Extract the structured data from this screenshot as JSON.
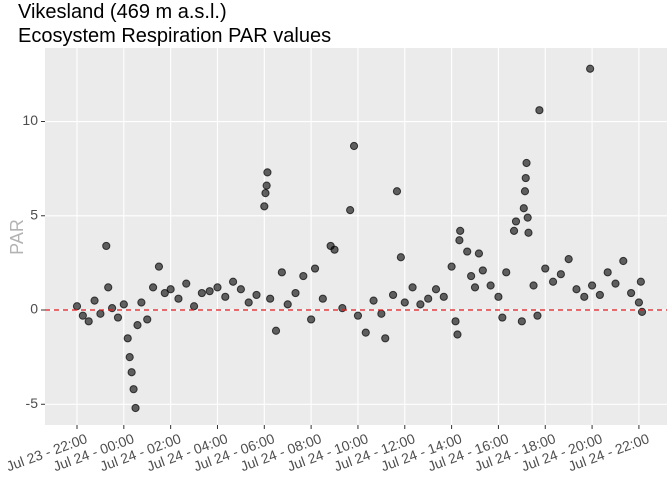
{
  "chart_data": {
    "type": "scatter",
    "title": "Vikesland (469 m a.s.l.)",
    "subtitle": "Ecosystem Respiration PAR values",
    "y_label": "PAR",
    "grid": true,
    "reference_line": {
      "value": 0,
      "color": "#e41a1c"
    },
    "xlim": [
      "Jul 23 - 20:38",
      "Jul 24 - 23:12"
    ],
    "xticks": [
      "Jul 23 - 22:00",
      "Jul 24 - 00:00",
      "Jul 24 - 02:00",
      "Jul 24 - 04:00",
      "Jul 24 - 06:00",
      "Jul 24 - 08:00",
      "Jul 24 - 10:00",
      "Jul 24 - 12:00",
      "Jul 24 - 14:00",
      "Jul 24 - 16:00",
      "Jul 24 - 18:00",
      "Jul 24 - 20:00",
      "Jul 24 - 22:00"
    ],
    "ylim": [
      -6.1,
      13.9
    ],
    "yticks": [
      -5,
      0,
      5,
      10
    ],
    "series": [
      {
        "color": "#000000",
        "x": [
          "Jul 23 - 22:00",
          "Jul 23 - 22:15",
          "Jul 23 - 22:30",
          "Jul 23 - 22:45",
          "Jul 23 - 23:00",
          "Jul 23 - 23:15",
          "Jul 23 - 23:20",
          "Jul 23 - 23:30",
          "Jul 23 - 23:45",
          "Jul 24 - 00:00",
          "Jul 24 - 00:10",
          "Jul 24 - 00:15",
          "Jul 24 - 00:20",
          "Jul 24 - 00:25",
          "Jul 24 - 00:30",
          "Jul 24 - 00:35",
          "Jul 24 - 00:45",
          "Jul 24 - 01:00",
          "Jul 24 - 01:15",
          "Jul 24 - 01:30",
          "Jul 24 - 01:45",
          "Jul 24 - 02:00",
          "Jul 24 - 02:20",
          "Jul 24 - 02:40",
          "Jul 24 - 03:00",
          "Jul 24 - 03:20",
          "Jul 24 - 03:40",
          "Jul 24 - 04:00",
          "Jul 24 - 04:20",
          "Jul 24 - 04:40",
          "Jul 24 - 05:00",
          "Jul 24 - 05:20",
          "Jul 24 - 05:40",
          "Jul 24 - 06:00",
          "Jul 24 - 06:03",
          "Jul 24 - 06:06",
          "Jul 24 - 06:08",
          "Jul 24 - 06:15",
          "Jul 24 - 06:30",
          "Jul 24 - 06:45",
          "Jul 24 - 07:00",
          "Jul 24 - 07:20",
          "Jul 24 - 07:40",
          "Jul 24 - 08:00",
          "Jul 24 - 08:10",
          "Jul 24 - 08:30",
          "Jul 24 - 08:50",
          "Jul 24 - 09:00",
          "Jul 24 - 09:20",
          "Jul 24 - 09:40",
          "Jul 24 - 09:50",
          "Jul 24 - 10:00",
          "Jul 24 - 10:20",
          "Jul 24 - 10:40",
          "Jul 24 - 11:00",
          "Jul 24 - 11:10",
          "Jul 24 - 11:30",
          "Jul 24 - 11:40",
          "Jul 24 - 11:50",
          "Jul 24 - 12:00",
          "Jul 24 - 12:20",
          "Jul 24 - 12:40",
          "Jul 24 - 13:00",
          "Jul 24 - 13:20",
          "Jul 24 - 13:40",
          "Jul 24 - 14:00",
          "Jul 24 - 14:10",
          "Jul 24 - 14:15",
          "Jul 24 - 14:20",
          "Jul 24 - 14:22",
          "Jul 24 - 14:40",
          "Jul 24 - 14:50",
          "Jul 24 - 15:00",
          "Jul 24 - 15:10",
          "Jul 24 - 15:20",
          "Jul 24 - 15:40",
          "Jul 24 - 16:00",
          "Jul 24 - 16:10",
          "Jul 24 - 16:20",
          "Jul 24 - 16:40",
          "Jul 24 - 16:45",
          "Jul 24 - 17:00",
          "Jul 24 - 17:05",
          "Jul 24 - 17:08",
          "Jul 24 - 17:10",
          "Jul 24 - 17:12",
          "Jul 24 - 17:15",
          "Jul 24 - 17:17",
          "Jul 24 - 17:30",
          "Jul 24 - 17:40",
          "Jul 24 - 17:45",
          "Jul 24 - 18:00",
          "Jul 24 - 18:20",
          "Jul 24 - 18:40",
          "Jul 24 - 19:00",
          "Jul 24 - 19:20",
          "Jul 24 - 19:40",
          "Jul 24 - 19:55",
          "Jul 24 - 20:00",
          "Jul 24 - 20:20",
          "Jul 24 - 20:40",
          "Jul 24 - 21:00",
          "Jul 24 - 21:20",
          "Jul 24 - 21:40",
          "Jul 24 - 22:00",
          "Jul 24 - 22:05",
          "Jul 24 - 22:08"
        ],
        "values": [
          0.2,
          -0.3,
          -0.6,
          0.5,
          -0.2,
          3.4,
          1.2,
          0.1,
          -0.4,
          0.3,
          -1.5,
          -2.5,
          -3.3,
          -4.2,
          -5.2,
          -0.8,
          0.4,
          -0.5,
          1.2,
          2.3,
          0.9,
          1.1,
          0.6,
          1.4,
          0.2,
          0.9,
          1.0,
          1.2,
          0.7,
          1.5,
          1.1,
          0.4,
          0.8,
          5.5,
          6.2,
          6.6,
          7.3,
          0.6,
          -1.1,
          2.0,
          0.3,
          0.9,
          1.8,
          -0.5,
          2.2,
          0.6,
          3.4,
          3.2,
          0.1,
          5.3,
          8.7,
          -0.3,
          -1.2,
          0.5,
          -0.2,
          -1.5,
          0.8,
          6.3,
          2.8,
          0.4,
          1.2,
          0.3,
          0.6,
          1.1,
          0.7,
          2.3,
          -0.6,
          -1.3,
          3.7,
          4.2,
          3.1,
          1.8,
          1.2,
          3.0,
          2.1,
          1.3,
          0.7,
          -0.4,
          2.0,
          4.2,
          4.7,
          -0.6,
          5.4,
          6.3,
          7.0,
          7.8,
          4.9,
          4.1,
          1.3,
          -0.3,
          10.6,
          2.2,
          1.5,
          1.9,
          2.7,
          1.1,
          0.7,
          12.8,
          1.3,
          0.8,
          2.0,
          1.4,
          2.6,
          0.9,
          0.4,
          1.5,
          -0.1
        ]
      }
    ]
  }
}
